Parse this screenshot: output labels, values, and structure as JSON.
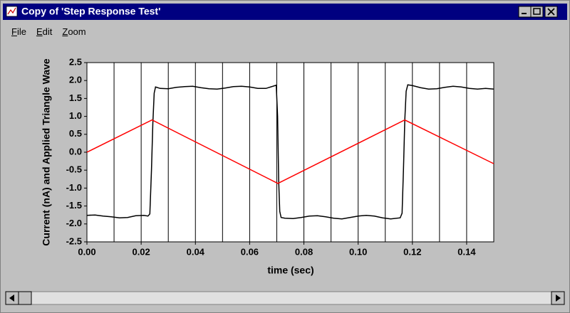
{
  "window": {
    "title": "Copy of 'Step Response Test'"
  },
  "menu": [
    "File",
    "Edit",
    "Zoom"
  ],
  "chart_data": {
    "type": "line",
    "x_label": "time (sec)",
    "y_label": "Current (nA) and Applied Triangle Wave",
    "xlim": [
      0,
      0.15
    ],
    "ylim": [
      -2.5,
      2.5
    ],
    "xticks": [
      {
        "value": 0,
        "label": "0.00"
      },
      {
        "value": 0.02,
        "label": "0.02"
      },
      {
        "value": 0.04,
        "label": "0.04"
      },
      {
        "value": 0.06,
        "label": "0.06"
      },
      {
        "value": 0.08,
        "label": "0.08"
      },
      {
        "value": 0.1,
        "label": "0.10"
      },
      {
        "value": 0.12,
        "label": "0.12"
      },
      {
        "value": 0.14,
        "label": "0.14"
      }
    ],
    "x_minor_ticks": [
      0.01,
      0.03,
      0.05,
      0.07,
      0.09,
      0.11,
      0.13
    ],
    "yticks": [
      2.5,
      {
        "value": 2,
        "label": "2.0"
      },
      1.5,
      {
        "value": 1,
        "label": "1.0"
      },
      0.5,
      {
        "value": 0,
        "label": "0.0"
      },
      -0.5,
      {
        "value": -1,
        "label": "-1.0"
      },
      -1.5,
      {
        "value": -2,
        "label": "-2.0"
      },
      -2.5
    ],
    "grid": "x",
    "series": [
      {
        "color": "#000000",
        "x": [
          0,
          0.003,
          0.006,
          0.009,
          0.012,
          0.015,
          0.018,
          0.021,
          0.0225,
          0.0232,
          0.0238,
          0.0243,
          0.0248,
          0.0253,
          0.027,
          0.03,
          0.033,
          0.036,
          0.039,
          0.042,
          0.045,
          0.048,
          0.051,
          0.054,
          0.057,
          0.06,
          0.063,
          0.066,
          0.069,
          0.0698,
          0.0703,
          0.0707,
          0.0711,
          0.0716,
          0.073,
          0.076,
          0.079,
          0.082,
          0.085,
          0.088,
          0.091,
          0.094,
          0.097,
          0.1,
          0.103,
          0.106,
          0.109,
          0.112,
          0.1155,
          0.1162,
          0.1167,
          0.1172,
          0.1177,
          0.1183,
          0.12,
          0.123,
          0.126,
          0.129,
          0.132,
          0.135,
          0.138,
          0.141,
          0.144,
          0.147,
          0.15
        ],
        "values": [
          -1.76,
          -1.75,
          -1.78,
          -1.8,
          -1.83,
          -1.82,
          -1.77,
          -1.76,
          -1.78,
          -1.72,
          -0.5,
          0.8,
          1.65,
          1.82,
          1.78,
          1.77,
          1.81,
          1.83,
          1.84,
          1.8,
          1.77,
          1.76,
          1.79,
          1.83,
          1.84,
          1.82,
          1.78,
          1.78,
          1.85,
          1.87,
          1.0,
          -0.8,
          -1.65,
          -1.82,
          -1.84,
          -1.85,
          -1.82,
          -1.78,
          -1.77,
          -1.8,
          -1.84,
          -1.86,
          -1.82,
          -1.78,
          -1.76,
          -1.78,
          -1.83,
          -1.86,
          -1.83,
          -1.7,
          -0.5,
          0.9,
          1.7,
          1.88,
          1.86,
          1.8,
          1.76,
          1.77,
          1.81,
          1.84,
          1.82,
          1.78,
          1.76,
          1.78,
          1.76
        ]
      },
      {
        "color": "#ff0000",
        "x": [
          0,
          0.024,
          0.0704,
          0.1172,
          0.15
        ],
        "values": [
          0,
          0.9,
          -0.87,
          0.9,
          -0.32
        ]
      }
    ]
  }
}
